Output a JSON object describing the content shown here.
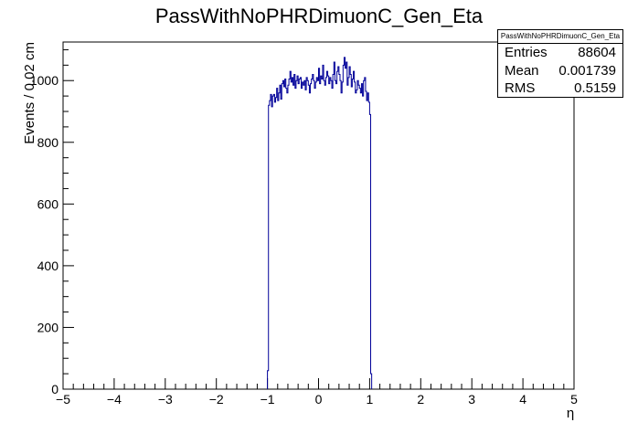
{
  "chart_data": {
    "type": "histogram",
    "title": "PassWithNoPHRDimuonC_Gen_Eta",
    "xlabel": "η",
    "ylabel": "Events / 0.02 cm",
    "xlim": [
      -5,
      5
    ],
    "ylim": [
      0,
      1125
    ],
    "x_ticks": [
      "−5",
      "−4",
      "−3",
      "−2",
      "−1",
      "0",
      "1",
      "2",
      "3",
      "4",
      "5"
    ],
    "y_ticks": [
      "0",
      "200",
      "400",
      "600",
      "800",
      "1000"
    ],
    "bin_width": 0.02,
    "bin_start": -1.0,
    "bin_values": [
      60,
      920,
      935,
      955,
      915,
      950,
      955,
      930,
      945,
      975,
      935,
      960,
      985,
      940,
      990,
      1000,
      980,
      1005,
      975,
      960,
      985,
      1005,
      1030,
      995,
      1010,
      985,
      1020,
      975,
      1000,
      1015,
      990,
      1005,
      1010,
      975,
      995,
      985,
      1000,
      970,
      1010,
      1000,
      985,
      960,
      990,
      1005,
      1020,
      1000,
      975,
      995,
      1010,
      1000,
      1040,
      990,
      1015,
      1005,
      1050,
      1000,
      985,
      1010,
      1030,
      1015,
      990,
      1010,
      1000,
      975,
      1020,
      1060,
      1000,
      990,
      1030,
      1045,
      1020,
      1000,
      960,
      995,
      1050,
      1075,
      1040,
      1060,
      985,
      1010,
      1045,
      1020,
      980,
      1005,
      1030,
      995,
      960,
      970,
      1000,
      985,
      975,
      960,
      990,
      950,
      1000,
      1010,
      965,
      935,
      960,
      930,
      890,
      50
    ],
    "line_color": "#000099",
    "stats": {
      "title": "PassWithNoPHRDimuonC_Gen_Eta",
      "rows": [
        {
          "label": "Entries",
          "value": "88604"
        },
        {
          "label": "Mean",
          "value": "0.001739"
        },
        {
          "label": "RMS",
          "value": "0.5159"
        }
      ]
    }
  }
}
